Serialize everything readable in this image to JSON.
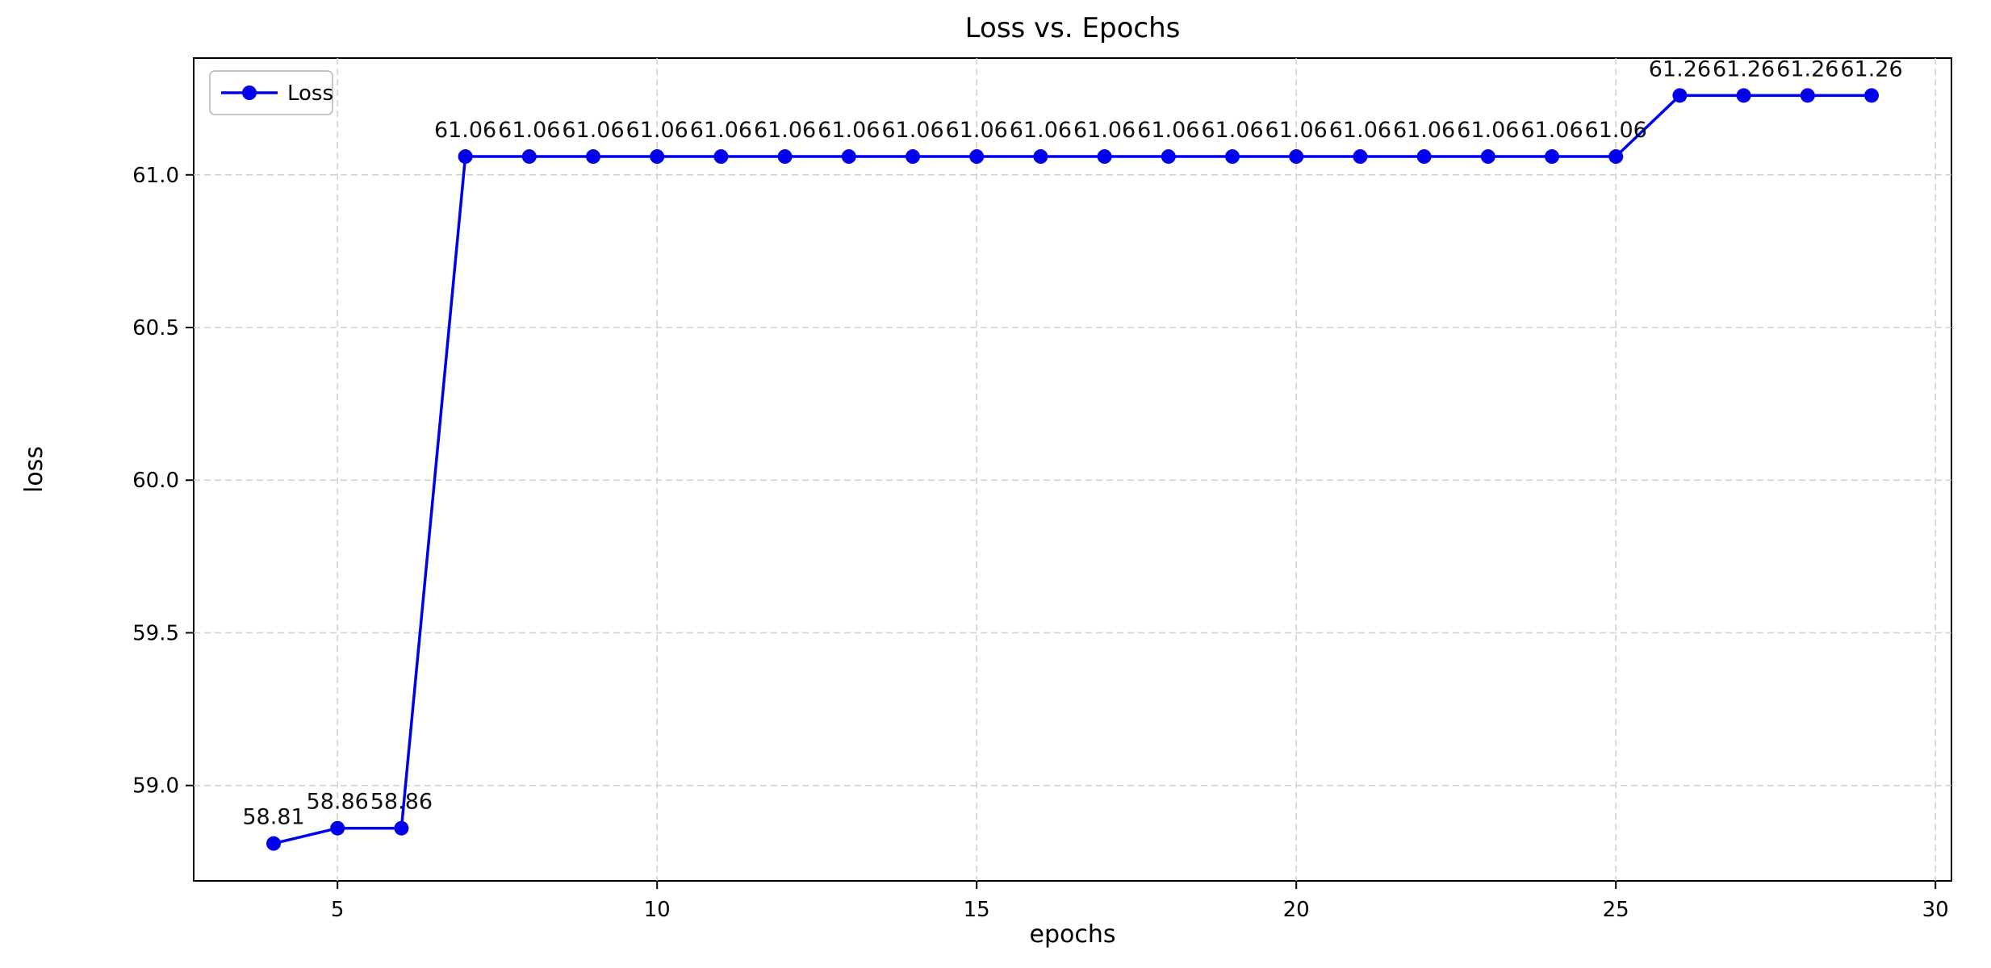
{
  "title": "Loss vs. Epochs",
  "xlabel": "epochs",
  "ylabel": "loss",
  "legend": {
    "label": "Loss"
  },
  "chart_data": {
    "type": "line",
    "line_color": "#0000ee",
    "grid": true,
    "legend_position": "upper left",
    "xlim": [
      2.75,
      30.25
    ],
    "ylim": [
      58.6875,
      61.3825
    ],
    "xticks": [
      5,
      10,
      15,
      20,
      25,
      30
    ],
    "xtick_labels": [
      "5",
      "10",
      "15",
      "20",
      "25",
      "30"
    ],
    "yticks": [
      59.0,
      59.5,
      60.0,
      60.5,
      61.0
    ],
    "ytick_labels": [
      "59.0",
      "59.5",
      "60.0",
      "60.5",
      "61.0"
    ],
    "series": [
      {
        "name": "Loss",
        "x": [
          4,
          5,
          6,
          7,
          8,
          9,
          10,
          11,
          12,
          13,
          14,
          15,
          16,
          17,
          18,
          19,
          20,
          21,
          22,
          23,
          24,
          25,
          26,
          27,
          28,
          29
        ],
        "y": [
          58.81,
          58.86,
          58.86,
          61.06,
          61.06,
          61.06,
          61.06,
          61.06,
          61.06,
          61.06,
          61.06,
          61.06,
          61.06,
          61.06,
          61.06,
          61.06,
          61.06,
          61.06,
          61.06,
          61.06,
          61.06,
          61.06,
          61.26,
          61.26,
          61.26,
          61.26
        ],
        "labels": [
          "58.81",
          "58.86",
          "58.86",
          "61.06",
          "61.06",
          "61.06",
          "61.06",
          "61.06",
          "61.06",
          "61.06",
          "61.06",
          "61.06",
          "61.06",
          "61.06",
          "61.06",
          "61.06",
          "61.06",
          "61.06",
          "61.06",
          "61.06",
          "61.06",
          "61.06",
          "61.26",
          "61.26",
          "61.26",
          "61.26"
        ]
      }
    ]
  }
}
